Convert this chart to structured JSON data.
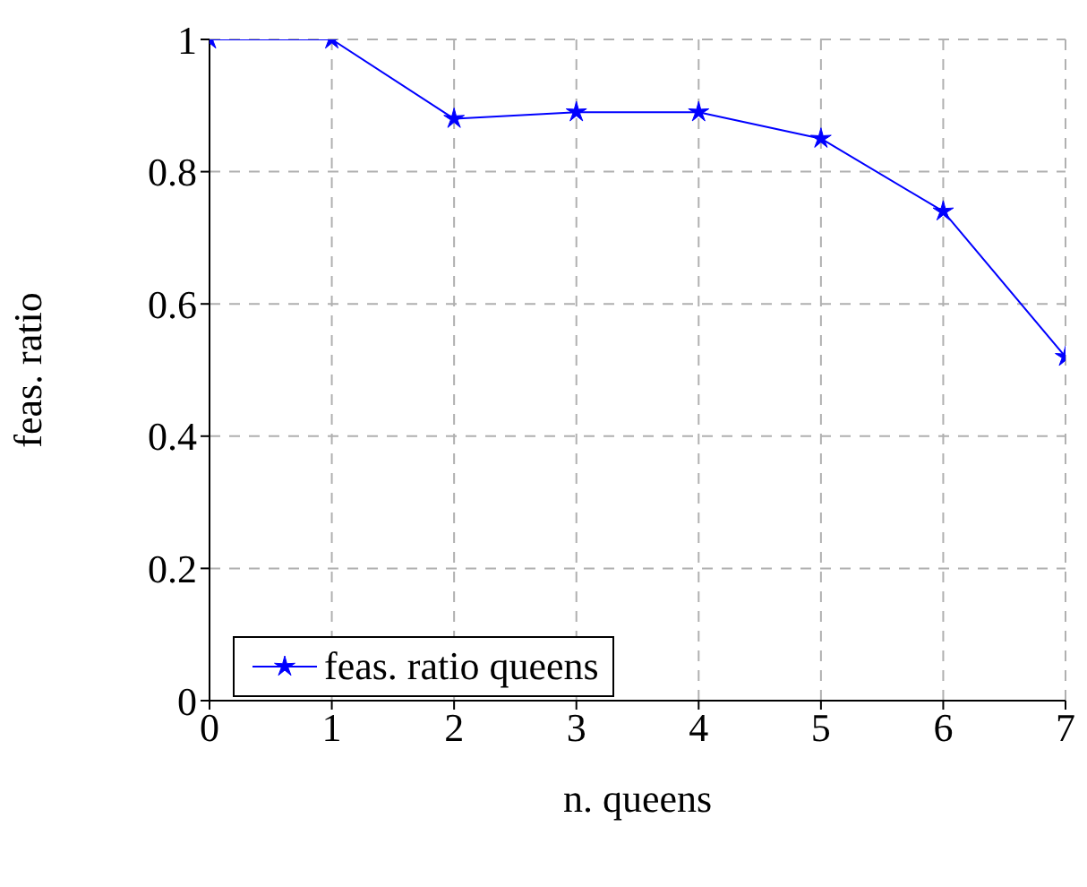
{
  "chart_data": {
    "type": "line",
    "xlabel": "n. queens",
    "ylabel": "feas. ratio",
    "x": [
      0,
      1,
      2,
      3,
      4,
      5,
      6,
      7
    ],
    "series": [
      {
        "name": "feas. ratio queens",
        "color": "#0000ff",
        "values": [
          1,
          1,
          0.88,
          0.89,
          0.89,
          0.85,
          0.74,
          0.52
        ]
      }
    ],
    "xlim": [
      0,
      7
    ],
    "xticks": [
      0,
      1,
      2,
      3,
      4,
      5,
      6,
      7
    ],
    "ylim": [
      0,
      1
    ],
    "yticks": [
      0,
      0.2,
      0.4,
      0.6,
      0.8,
      1
    ],
    "grid": true,
    "legend": "bottom left",
    "marker": "star",
    "line_style": "solid"
  }
}
